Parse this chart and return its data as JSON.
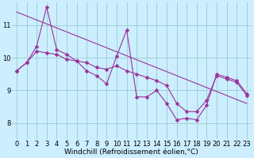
{
  "background_color": "#cceeff",
  "line_color": "#993399",
  "marker": "D",
  "marker_size": 2.5,
  "xlabel": "Windchill (Refroidissement éolien,°C)",
  "xlabel_fontsize": 6.5,
  "ylim": [
    7.5,
    11.7
  ],
  "yticks": [
    8,
    9,
    10,
    11
  ],
  "xticks": [
    0,
    1,
    2,
    3,
    4,
    5,
    6,
    7,
    8,
    9,
    10,
    11,
    12,
    13,
    14,
    15,
    16,
    17,
    18,
    19,
    20,
    21,
    22,
    23
  ],
  "grid_color": "#99cccc",
  "series1": [
    9.6,
    9.85,
    10.35,
    11.55,
    10.25,
    10.1,
    9.9,
    9.6,
    9.45,
    9.2,
    10.05,
    10.85,
    8.8,
    8.8,
    9.0,
    8.6,
    8.1,
    8.15,
    8.1,
    8.55,
    9.5,
    9.4,
    9.3,
    8.9
  ],
  "series2": [
    9.6,
    9.85,
    10.2,
    10.15,
    10.1,
    9.95,
    9.9,
    9.85,
    9.7,
    9.65,
    9.75,
    9.6,
    9.5,
    9.4,
    9.3,
    9.15,
    8.6,
    8.35,
    8.35,
    8.7,
    9.45,
    9.35,
    9.25,
    8.85
  ],
  "series3_start": 11.4,
  "series3_end": 8.6,
  "tick_fontsize": 6.0,
  "linewidth": 0.8
}
